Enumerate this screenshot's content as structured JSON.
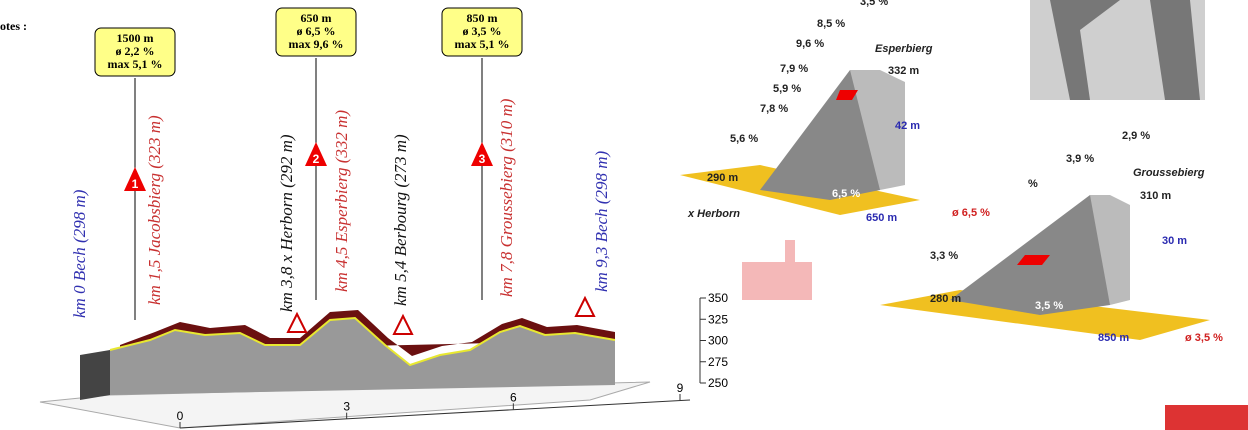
{
  "header": {
    "label": "otes :"
  },
  "climbs": [
    {
      "number": "1",
      "length": "1500 m",
      "avg": "ø 2,2 %",
      "max": "max 5,1 %"
    },
    {
      "number": "2",
      "length": "650 m",
      "avg": "ø 6,5 %",
      "max": "max 9,6 %"
    },
    {
      "number": "3",
      "length": "850 m",
      "avg": "ø 3,5 %",
      "max": "max 5,1 %"
    }
  ],
  "waypoints": [
    "km 0 Bech (298 m)",
    "km 1,5 Jacobsbierg (323 m)",
    "km 3,8 x Herborn (292 m)",
    "km 4,5 Esperbierg (332 m)",
    "km 5,4 Berbourg (273 m)",
    "km 7,8 Groussebierg (310 m)",
    "km 9,3 Bech (298 m)"
  ],
  "profile": {
    "ylim": [
      250,
      350
    ],
    "yticks": [
      250,
      275,
      300,
      325,
      350
    ],
    "xlim": [
      0,
      9
    ],
    "xticks": [
      0,
      3,
      6,
      9
    ]
  },
  "details": [
    {
      "name": "Esperbierg",
      "top": "332 m",
      "gain": "42 m",
      "base": "290 m",
      "avg": "6,5 %",
      "start": "x Herborn",
      "length": "650 m",
      "gradients": [
        "3,5 %",
        "8,5 %",
        "9,6 %",
        "7,9 %",
        "5,9 %",
        "7,8 %",
        "5,6 %"
      ]
    },
    {
      "name": "Groussebierg",
      "top": "310 m",
      "gain": "30 m",
      "base": "280 m",
      "avg": "3,5 %",
      "length": "850 m",
      "avg_red": "ø 3,5 %",
      "prev_avg": "ø 6,5 %",
      "gradients": [
        "2,9 %",
        "3,9 %",
        "%",
        "3,3 %"
      ]
    }
  ]
}
